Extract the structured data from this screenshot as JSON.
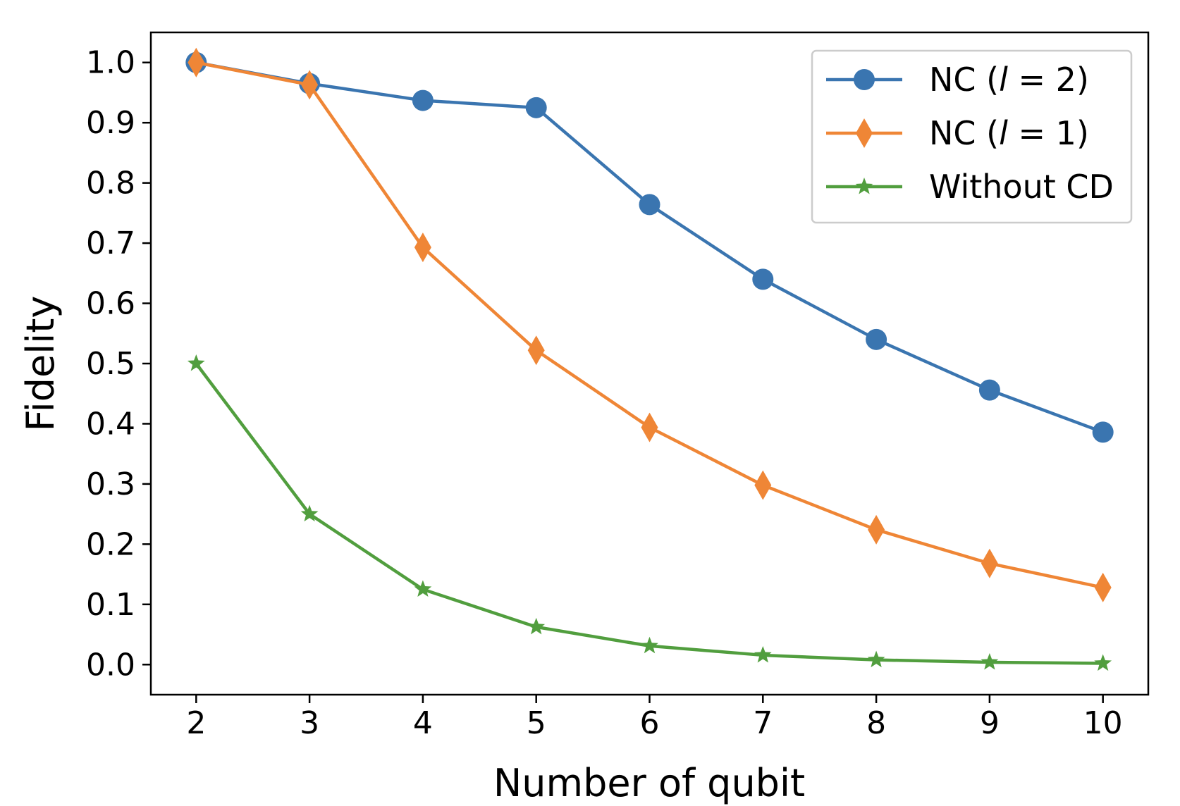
{
  "chart_data": {
    "type": "line",
    "xlabel": "Number of qubit",
    "ylabel": "Fidelity",
    "x": [
      2,
      3,
      4,
      5,
      6,
      7,
      8,
      9,
      10
    ],
    "xticks": [
      "2",
      "3",
      "4",
      "5",
      "6",
      "7",
      "8",
      "9",
      "10"
    ],
    "yticks": [
      "0.0",
      "0.1",
      "0.2",
      "0.3",
      "0.4",
      "0.5",
      "0.6",
      "0.7",
      "0.8",
      "0.9",
      "1.0"
    ],
    "xlim": [
      1.6,
      10.4
    ],
    "ylim": [
      -0.05,
      1.05
    ],
    "grid": false,
    "legend_position": "top-right",
    "series": [
      {
        "name": "NC  (l = 2)",
        "legend_prefix": "NC  (",
        "legend_var": "l",
        "legend_suffix": " = 2)",
        "color": "#3a75b0",
        "marker": "circle",
        "values": [
          1.0,
          0.965,
          0.937,
          0.925,
          0.764,
          0.64,
          0.54,
          0.456,
          0.386
        ]
      },
      {
        "name": "NC (l = 1)",
        "legend_prefix": "NC (",
        "legend_var": "l",
        "legend_suffix": " = 1)",
        "color": "#ef8636",
        "marker": "diamond",
        "values": [
          1.0,
          0.963,
          0.693,
          0.522,
          0.394,
          0.298,
          0.224,
          0.168,
          0.128
        ]
      },
      {
        "name": "Without CD",
        "legend_prefix": "Without CD",
        "legend_var": "",
        "legend_suffix": "",
        "color": "#519e3e",
        "marker": "star",
        "values": [
          0.5,
          0.25,
          0.125,
          0.0625,
          0.031,
          0.0156,
          0.0078,
          0.0039,
          0.002
        ]
      }
    ]
  }
}
